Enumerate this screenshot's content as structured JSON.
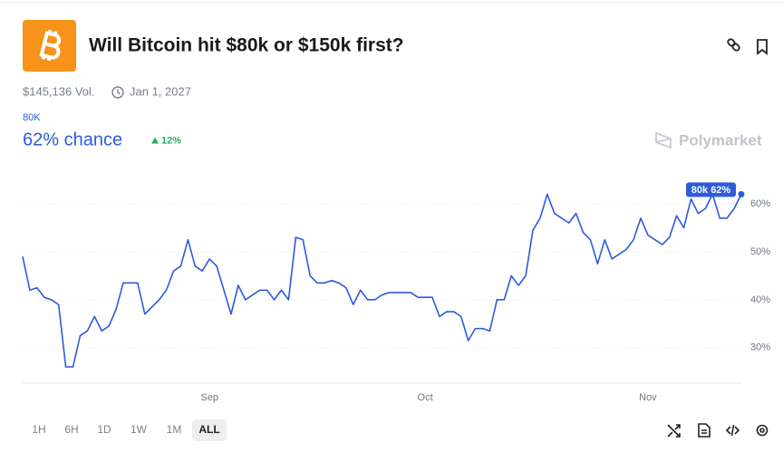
{
  "header": {
    "title": "Will Bitcoin hit $80k or $150k first?",
    "volume": "$145,136 Vol.",
    "end_date": "Jan 1, 2027"
  },
  "outcome": {
    "name": "80K",
    "chance": "62% chance",
    "change": "12%"
  },
  "brand": "Polymarket",
  "chart_data": {
    "type": "line",
    "categories": [
      null,
      null,
      null,
      null,
      null,
      null,
      null,
      null,
      null,
      null,
      null,
      null,
      null,
      null,
      null,
      null,
      null,
      null,
      null,
      null,
      null,
      null,
      null,
      null,
      null,
      null,
      "Sep",
      null,
      null,
      null,
      null,
      null,
      null,
      null,
      null,
      null,
      null,
      null,
      null,
      null,
      null,
      null,
      null,
      null,
      null,
      null,
      null,
      null,
      null,
      null,
      null,
      null,
      null,
      null,
      null,
      null,
      "Oct",
      null,
      null,
      null,
      null,
      null,
      null,
      null,
      null,
      null,
      null,
      null,
      null,
      null,
      null,
      null,
      null,
      null,
      null,
      null,
      null,
      null,
      null,
      null,
      null,
      null,
      null,
      null,
      null,
      null,
      null,
      "Nov",
      null,
      null,
      null,
      null,
      null,
      null,
      null,
      null,
      null,
      null,
      null,
      null,
      null
    ],
    "series": [
      {
        "color": "#2d5bdc",
        "values": [
          49,
          42,
          42.5,
          40.5,
          40,
          39,
          26,
          26,
          32.5,
          33.5,
          36.5,
          33.5,
          34.5,
          38,
          43.5,
          43.5,
          43.5,
          37,
          38.5,
          40,
          42,
          46,
          47,
          52.5,
          47,
          46,
          48.5,
          47,
          42,
          37,
          43,
          40,
          41,
          42,
          42,
          40,
          42,
          40,
          53,
          52.5,
          45,
          43.5,
          43.5,
          44,
          43.5,
          42.5,
          39,
          42,
          40,
          40,
          41,
          41.5,
          41.5,
          41.5,
          41.5,
          40.5,
          40.5,
          40.5,
          36.5,
          37.5,
          37.5,
          36.5,
          31.5,
          34,
          34,
          33.5,
          40,
          40,
          45,
          43,
          45,
          54.5,
          57,
          62,
          58,
          57,
          56,
          58,
          54,
          52.5,
          47.5,
          52.5,
          48.5,
          49.5,
          50.5,
          52.5,
          57,
          53.5,
          52.5,
          51.5,
          53,
          57.5,
          55,
          61,
          58,
          59,
          62,
          57,
          57,
          59,
          62
        ]
      }
    ],
    "end_label": "80k 62%",
    "ylim": [
      22.6,
      66.6
    ],
    "yticks": [
      {
        "value": 30,
        "label": "30%"
      },
      {
        "value": 40,
        "label": "40%"
      },
      {
        "value": 50,
        "label": "50%"
      },
      {
        "value": 60,
        "label": "60%"
      }
    ],
    "grid": true
  },
  "timeframes": [
    "1H",
    "6H",
    "1D",
    "1W",
    "1M",
    "ALL"
  ],
  "selected_timeframe": "ALL"
}
